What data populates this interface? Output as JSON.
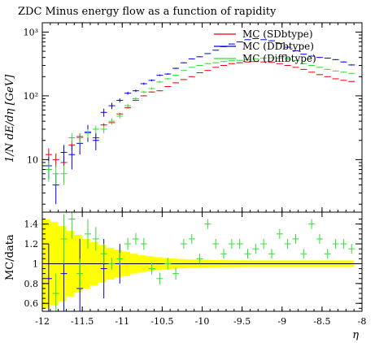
{
  "chart_data": {
    "type": "scatter",
    "title": "ZDC Minus energy flow as a function of rapidity",
    "xlabel": "η",
    "ylabel": "1/N dE/dη [GeV]",
    "ratio_ylabel": "MC/data",
    "xlim": [
      -12,
      -8
    ],
    "ylim": [
      1.5,
      1400
    ],
    "ylog": true,
    "ratio_ylim": [
      0.52,
      1.52
    ],
    "xticks": [
      {
        "v": -12,
        "label": "-12"
      },
      {
        "v": -11.5,
        "label": "-11.5"
      },
      {
        "v": -11,
        "label": "-11"
      },
      {
        "v": -10.5,
        "label": "-10.5"
      },
      {
        "v": -10,
        "label": "-10"
      },
      {
        "v": -9.5,
        "label": "-9.5"
      },
      {
        "v": -9,
        "label": "-9"
      },
      {
        "v": -8.5,
        "label": "-8.5"
      },
      {
        "v": -8,
        "label": "-8"
      }
    ],
    "yticks": [
      {
        "v": 10,
        "label": "10"
      },
      {
        "v": 100,
        "label": "10²"
      },
      {
        "v": 1000,
        "label": "10³"
      }
    ],
    "ratio_yticks": [
      {
        "v": 0.6,
        "label": "0.6"
      },
      {
        "v": 0.8,
        "label": "0.8"
      },
      {
        "v": 1.0,
        "label": "1"
      },
      {
        "v": 1.2,
        "label": "1.2"
      },
      {
        "v": 1.4,
        "label": "1.4"
      }
    ],
    "x": [
      -11.92,
      -11.83,
      -11.73,
      -11.63,
      -11.53,
      -11.43,
      -11.33,
      -11.23,
      -11.13,
      -11.03,
      -10.93,
      -10.83,
      -10.73,
      -10.63,
      -10.53,
      -10.43,
      -10.33,
      -10.23,
      -10.13,
      -10.03,
      -9.93,
      -9.83,
      -9.73,
      -9.63,
      -9.53,
      -9.43,
      -9.33,
      -9.23,
      -9.13,
      -9.03,
      -8.93,
      -8.83,
      -8.73,
      -8.63,
      -8.53,
      -8.43,
      -8.33,
      -8.23,
      -8.13
    ],
    "series": [
      {
        "name": "MC (SDbtype)",
        "color": "#e60000",
        "y": [
          12,
          10,
          9,
          17,
          23,
          26,
          22,
          35,
          38,
          52,
          65,
          85,
          100,
          115,
          120,
          140,
          160,
          180,
          200,
          230,
          250,
          280,
          300,
          320,
          330,
          340,
          345,
          340,
          335,
          320,
          300,
          280,
          260,
          235,
          215,
          200,
          185,
          175,
          168
        ],
        "yerr": [
          3,
          2.5,
          2,
          3,
          3,
          3,
          2,
          2,
          2,
          2,
          2,
          2,
          2,
          2,
          2,
          2,
          2,
          2,
          2,
          2,
          2,
          2,
          2,
          2,
          2,
          2,
          2,
          2,
          2,
          2,
          2,
          2,
          2,
          2,
          2,
          2,
          2,
          2,
          2
        ]
      },
      {
        "name": "MC (DDbtype)",
        "color": "#0000e6",
        "y": [
          8,
          4,
          13,
          12,
          18,
          27,
          20,
          55,
          70,
          85,
          110,
          120,
          155,
          175,
          210,
          220,
          270,
          330,
          380,
          410,
          460,
          520,
          590,
          650,
          700,
          760,
          790,
          760,
          730,
          660,
          580,
          510,
          450,
          420,
          400,
          390,
          370,
          340,
          305
        ],
        "yerr": [
          3,
          2,
          4,
          5,
          6,
          8,
          6,
          8,
          8,
          6,
          6,
          5,
          6,
          6,
          6,
          6,
          6,
          6,
          6,
          6,
          6,
          6,
          6,
          6,
          6,
          6,
          6,
          6,
          6,
          6,
          6,
          6,
          6,
          6,
          6,
          6,
          6,
          6,
          6
        ]
      },
      {
        "name": "MC (Diffbtype)",
        "color": "#33dd33",
        "y": [
          7,
          6,
          6,
          22,
          22,
          26,
          30,
          30,
          40,
          48,
          70,
          90,
          115,
          130,
          165,
          185,
          210,
          250,
          280,
          300,
          320,
          330,
          345,
          355,
          360,
          370,
          380,
          390,
          395,
          390,
          380,
          360,
          320,
          300,
          280,
          260,
          245,
          235,
          225
        ],
        "yerr": [
          2.5,
          2,
          2,
          4,
          4,
          4,
          4,
          4,
          4,
          4,
          5,
          5,
          5,
          5,
          5,
          5,
          5,
          5,
          5,
          5,
          5,
          5,
          5,
          5,
          5,
          5,
          5,
          5,
          5,
          5,
          5,
          5,
          5,
          5,
          5,
          5,
          5,
          5,
          5
        ]
      }
    ],
    "ratio_series": [
      {
        "name": "MC (DDbtype)",
        "color": "#0000e6",
        "x": [
          -11.92,
          -11.73,
          -11.53,
          -11.23,
          -11.03
        ],
        "y": [
          0.85,
          0.9,
          0.75,
          0.95,
          1.0
        ],
        "yerr": [
          0.35,
          0.4,
          0.5,
          0.3,
          0.2
        ]
      },
      {
        "name": "MC (Diffbtype)",
        "color": "#33dd33",
        "x": [
          -11.83,
          -11.73,
          -11.63,
          -11.53,
          -11.43,
          -11.33,
          -11.23,
          -11.13,
          -11.03,
          -10.93,
          -10.83,
          -10.73,
          -10.63,
          -10.53,
          -10.43,
          -10.33,
          -10.23,
          -10.13,
          -10.03,
          -9.93,
          -9.83,
          -9.73,
          -9.63,
          -9.53,
          -9.43,
          -9.33,
          -9.23,
          -9.13,
          -9.03,
          -8.93,
          -8.83,
          -8.73,
          -8.63,
          -8.53,
          -8.43,
          -8.33,
          -8.23,
          -8.13
        ],
        "y": [
          0.7,
          1.25,
          1.45,
          0.9,
          1.3,
          1.25,
          1.1,
          1.0,
          1.05,
          1.2,
          1.25,
          1.2,
          0.95,
          0.85,
          1.0,
          0.9,
          1.2,
          1.25,
          1.05,
          1.4,
          1.2,
          1.1,
          1.2,
          1.2,
          1.1,
          1.15,
          1.2,
          1.1,
          1.3,
          1.2,
          1.25,
          1.1,
          1.4,
          1.25,
          1.1,
          1.2,
          1.2,
          1.15
        ],
        "yerr": [
          0.2,
          0.25,
          0.2,
          0.15,
          0.15,
          0.12,
          0.1,
          0.06,
          0.06,
          0.06,
          0.06,
          0.06,
          0.06,
          0.06,
          0.06,
          0.06,
          0.05,
          0.05,
          0.05,
          0.05,
          0.05,
          0.05,
          0.05,
          0.05,
          0.05,
          0.05,
          0.05,
          0.05,
          0.05,
          0.05,
          0.05,
          0.05,
          0.05,
          0.05,
          0.05,
          0.05,
          0.05,
          0.05
        ]
      }
    ],
    "reference_band": {
      "color": "#ffff00",
      "x": [
        -11.95,
        -11.85,
        -11.75,
        -11.65,
        -11.55,
        -11.45,
        -11.35,
        -11.25,
        -11.15,
        -11.05,
        -10.95,
        -10.85,
        -10.75,
        -10.65,
        -10.55,
        -10.45,
        -10.35,
        -10.25,
        -10.15,
        -10.05,
        -9.95,
        -9.85,
        -9.75,
        -9.65,
        -9.55,
        -9.45,
        -9.35,
        -9.25,
        -9.15,
        -9.05,
        -8.95,
        -8.85,
        -8.75,
        -8.65,
        -8.55,
        -8.45,
        -8.35,
        -8.25,
        -8.15
      ],
      "halfwidth": [
        0.45,
        0.42,
        0.38,
        0.33,
        0.29,
        0.25,
        0.22,
        0.19,
        0.16,
        0.14,
        0.12,
        0.1,
        0.085,
        0.075,
        0.065,
        0.058,
        0.052,
        0.047,
        0.043,
        0.04,
        0.038,
        0.036,
        0.035,
        0.034,
        0.034,
        0.033,
        0.033,
        0.033,
        0.033,
        0.033,
        0.033,
        0.033,
        0.033,
        0.033,
        0.033,
        0.033,
        0.033,
        0.033,
        0.033
      ]
    },
    "legend_position": "top-right"
  }
}
